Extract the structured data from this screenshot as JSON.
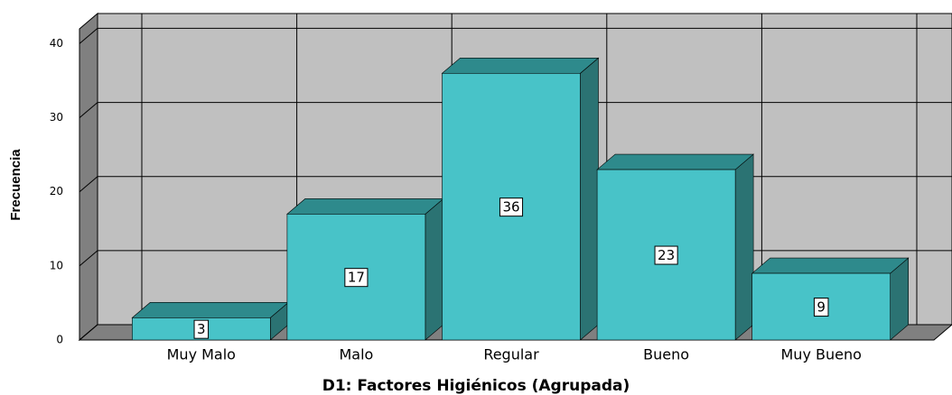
{
  "chart_data": {
    "type": "bar3d",
    "xlabel": "D1: Factores Higiénicos (Agrupada)",
    "ylabel": "Frecuencia",
    "categories": [
      "Muy Malo",
      "Malo",
      "Regular",
      "Bueno",
      "Muy Bueno"
    ],
    "values": [
      3,
      17,
      36,
      23,
      9
    ],
    "color": "#48c3c8",
    "ylim": [
      0,
      42
    ],
    "yticks": [
      0,
      10,
      20,
      30,
      40
    ],
    "grid": true
  }
}
